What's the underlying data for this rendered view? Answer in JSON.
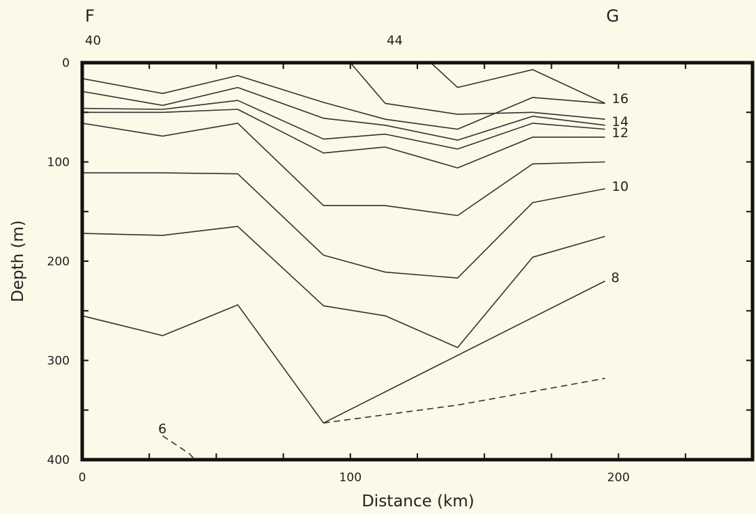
{
  "chart_data": {
    "type": "line",
    "title": "",
    "xlabel": "Distance (km)",
    "ylabel": "Depth (m)",
    "xlim": [
      0,
      250
    ],
    "ylim": [
      400,
      0
    ],
    "x_ticks": [
      0,
      100,
      200
    ],
    "y_ticks": [
      0,
      100,
      200,
      300,
      400
    ],
    "section_start_label": "F",
    "section_end_label": "G",
    "station_labels": [
      {
        "label": "40",
        "x": 0
      },
      {
        "label": "44",
        "x": 110
      }
    ],
    "series": [
      {
        "label": "16",
        "points": [
          [
            100,
            0
          ],
          [
            113,
            41
          ],
          [
            140,
            52
          ],
          [
            168,
            50
          ],
          [
            195,
            57
          ]
        ]
      },
      {
        "label": "",
        "points": [
          [
            0,
            16
          ],
          [
            30,
            31
          ],
          [
            58,
            13
          ],
          [
            90,
            40
          ],
          [
            113,
            57
          ],
          [
            140,
            67
          ],
          [
            168,
            35
          ],
          [
            195,
            41
          ]
        ]
      },
      {
        "label": "",
        "points": [
          [
            130,
            0
          ],
          [
            140,
            25
          ],
          [
            168,
            7
          ],
          [
            195,
            41
          ]
        ]
      },
      {
        "label": "14",
        "points": [
          [
            0,
            29
          ],
          [
            30,
            43
          ],
          [
            58,
            25
          ],
          [
            90,
            56
          ],
          [
            113,
            63
          ],
          [
            140,
            78
          ],
          [
            168,
            54
          ],
          [
            195,
            63
          ]
        ]
      },
      {
        "label": "",
        "points": [
          [
            0,
            46
          ],
          [
            30,
            47
          ],
          [
            58,
            38
          ],
          [
            90,
            77
          ],
          [
            113,
            72
          ],
          [
            140,
            87
          ],
          [
            168,
            61
          ],
          [
            195,
            67
          ]
        ]
      },
      {
        "label": "12",
        "points": [
          [
            0,
            50
          ],
          [
            30,
            50
          ],
          [
            58,
            47
          ],
          [
            90,
            91
          ],
          [
            113,
            85
          ],
          [
            140,
            106
          ],
          [
            168,
            75
          ],
          [
            195,
            75
          ]
        ]
      },
      {
        "label": "",
        "points": [
          [
            0,
            61
          ],
          [
            30,
            74
          ],
          [
            58,
            61
          ],
          [
            90,
            144
          ],
          [
            113,
            144
          ],
          [
            140,
            154
          ],
          [
            168,
            102
          ],
          [
            195,
            100
          ]
        ]
      },
      {
        "label": "10",
        "points": [
          [
            0,
            111
          ],
          [
            30,
            111
          ],
          [
            58,
            112
          ],
          [
            90,
            194
          ],
          [
            113,
            211
          ],
          [
            140,
            217
          ],
          [
            168,
            141
          ],
          [
            195,
            127
          ]
        ]
      },
      {
        "label": "",
        "points": [
          [
            0,
            172
          ],
          [
            30,
            174
          ],
          [
            58,
            165
          ],
          [
            90,
            245
          ],
          [
            113,
            255
          ],
          [
            140,
            287
          ],
          [
            168,
            196
          ],
          [
            195,
            175
          ]
        ]
      },
      {
        "label": "8",
        "points": [
          [
            0,
            255
          ],
          [
            30,
            275
          ],
          [
            58,
            244
          ],
          [
            90,
            363
          ],
          [
            195,
            220
          ]
        ]
      },
      {
        "label": "",
        "style": "dashed",
        "points": [
          [
            90,
            363
          ],
          [
            140,
            345
          ],
          [
            195,
            318
          ]
        ]
      },
      {
        "label": "6",
        "style": "dashed",
        "points": [
          [
            30,
            376
          ],
          [
            40,
            394
          ],
          [
            42,
            400
          ]
        ]
      }
    ],
    "grid": false,
    "legend": "none"
  }
}
